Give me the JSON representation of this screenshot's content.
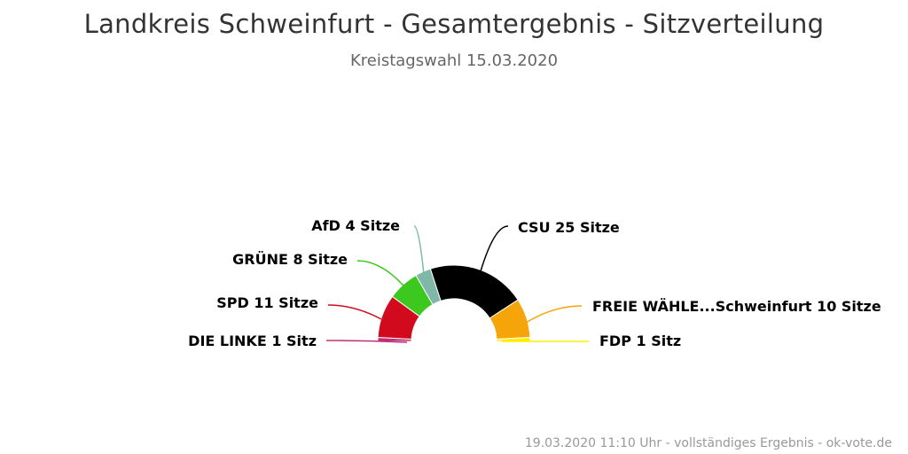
{
  "chart_data": {
    "type": "pie",
    "variant": "semicircle-donut",
    "title": "Landkreis Schweinfurt - Gesamtergebnis - Sitzverteilung",
    "subtitle": "Kreistagswahl 15.03.2020",
    "unit_plural": "Sitze",
    "unit_singular": "Sitz",
    "slices": [
      {
        "name": "DIE LINKE",
        "value": 1,
        "label": "DIE LINKE 1 Sitz",
        "color": "#be3075"
      },
      {
        "name": "SPD",
        "value": 11,
        "label": "SPD 11 Sitze",
        "color": "#d20a1e"
      },
      {
        "name": "GRÜNE",
        "value": 8,
        "label": "GRÜNE 8 Sitze",
        "color": "#3cc81e"
      },
      {
        "name": "AfD",
        "value": 4,
        "label": "AfD 4 Sitze",
        "color": "#7fb8a8"
      },
      {
        "name": "CSU",
        "value": 25,
        "label": "CSU 25 Sitze",
        "color": "#000000"
      },
      {
        "name": "FREIE WÄHLE...Schweinfurt",
        "value": 10,
        "label": "FREIE WÄHLE...Schweinfurt 10 Sitze",
        "color": "#f5a50a"
      },
      {
        "name": "FDP",
        "value": 1,
        "label": "FDP 1 Sitz",
        "color": "#ffee00"
      }
    ]
  },
  "footer": "19.03.2020 11:10 Uhr - vollständiges Ergebnis - ok-vote.de"
}
